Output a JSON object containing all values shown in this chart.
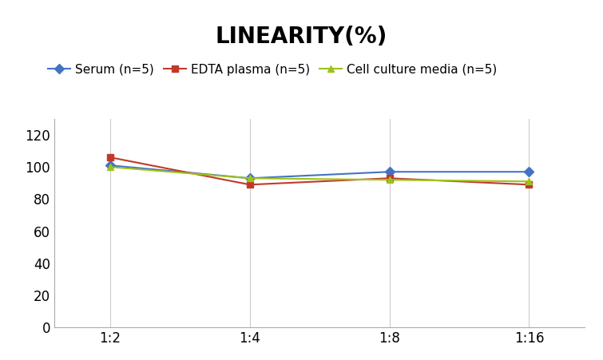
{
  "title": "LINEARITY(%)",
  "x_labels": [
    "1:2",
    "1:4",
    "1:8",
    "1:16"
  ],
  "x_positions": [
    0,
    1,
    2,
    3
  ],
  "series": [
    {
      "label": "Serum (n=5)",
      "values": [
        101,
        93,
        97,
        97
      ],
      "color": "#4472C4",
      "marker": "D",
      "markersize": 6
    },
    {
      "label": "EDTA plasma (n=5)",
      "values": [
        106,
        89,
        93,
        89
      ],
      "color": "#C0392B",
      "marker": "s",
      "markersize": 6
    },
    {
      "label": "Cell culture media (n=5)",
      "values": [
        100,
        93,
        92,
        91
      ],
      "color": "#9DC31A",
      "marker": "^",
      "markersize": 6
    }
  ],
  "ylim": [
    0,
    130
  ],
  "yticks": [
    0,
    20,
    40,
    60,
    80,
    100,
    120
  ],
  "title_fontsize": 20,
  "legend_fontsize": 11,
  "tick_fontsize": 12,
  "background_color": "#ffffff",
  "grid_color": "#CCCCCC",
  "spine_color": "#AAAAAA"
}
